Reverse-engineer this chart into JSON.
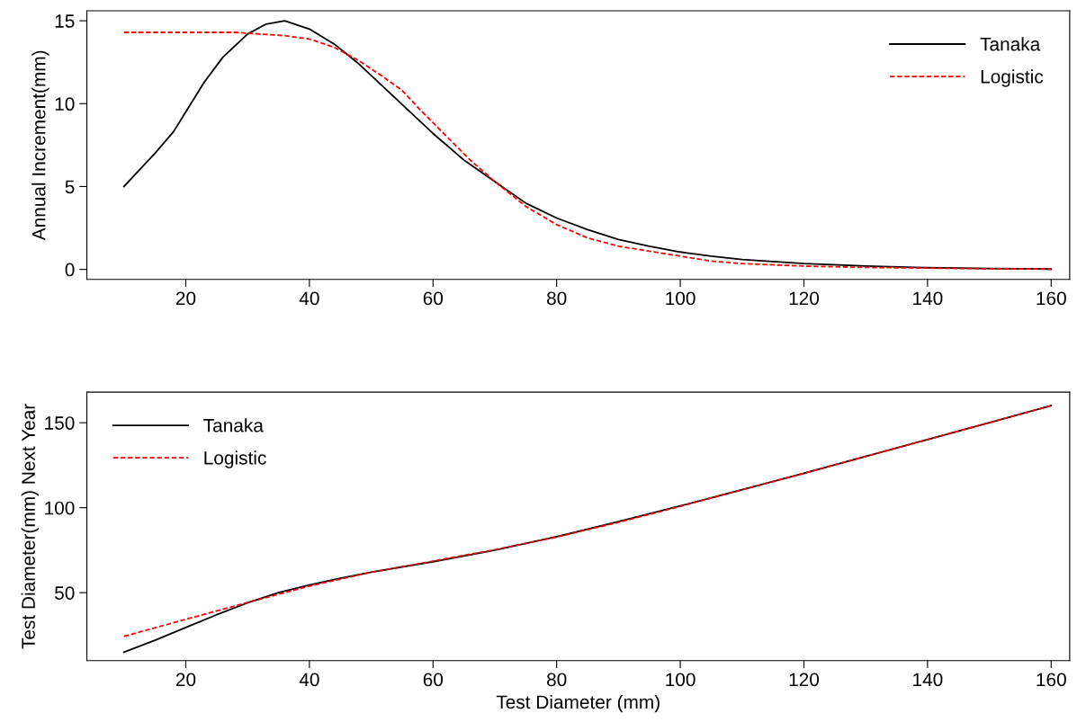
{
  "chart_data": [
    {
      "type": "line",
      "ylabel": "Annual Increment(mm)",
      "xlim": [
        4,
        163
      ],
      "ylim": [
        -0.6,
        15.6
      ],
      "xticks": [
        20,
        40,
        60,
        80,
        100,
        120,
        140,
        160
      ],
      "yticks": [
        0,
        5,
        10,
        15
      ],
      "grid": false,
      "legend": "top right",
      "series": [
        {
          "name": "Tanaka",
          "color": "#000000",
          "line_style": "solid",
          "x": [
            10,
            12,
            15,
            18,
            20,
            23,
            26,
            30,
            33,
            36,
            40,
            44,
            48,
            52,
            56,
            60,
            65,
            70,
            75,
            80,
            85,
            90,
            95,
            100,
            105,
            110,
            120,
            130,
            140,
            150,
            160
          ],
          "values": [
            5,
            5.8,
            7,
            8.3,
            9.5,
            11.3,
            12.8,
            14.2,
            14.8,
            15.0,
            14.5,
            13.6,
            12.4,
            11.0,
            9.6,
            8.2,
            6.6,
            5.3,
            4.0,
            3.1,
            2.4,
            1.8,
            1.4,
            1.05,
            0.8,
            0.6,
            0.35,
            0.2,
            0.1,
            0.05,
            0.02
          ]
        },
        {
          "name": "Logistic",
          "color": "#ff0000",
          "line_style": "dashed",
          "x": [
            10,
            20,
            28,
            32,
            36,
            40,
            44,
            48,
            52,
            55,
            58,
            62,
            66,
            70,
            75,
            80,
            85,
            90,
            95,
            100,
            105,
            110,
            120,
            130,
            140,
            150,
            160
          ],
          "values": [
            14.3,
            14.3,
            14.3,
            14.2,
            14.1,
            13.9,
            13.4,
            12.6,
            11.6,
            10.8,
            9.6,
            8.1,
            6.6,
            5.3,
            3.8,
            2.7,
            1.9,
            1.4,
            1.1,
            0.8,
            0.5,
            0.35,
            0.2,
            0.12,
            0.08,
            0.04,
            0.02
          ]
        }
      ]
    },
    {
      "type": "line",
      "xlabel": "Test Diameter (mm)",
      "ylabel": "Test Diameter(mm) Next Year",
      "xlim": [
        4,
        163
      ],
      "ylim": [
        10,
        168
      ],
      "xticks": [
        20,
        40,
        60,
        80,
        100,
        120,
        140,
        160
      ],
      "yticks": [
        50,
        100,
        150
      ],
      "grid": false,
      "legend": "top left",
      "series": [
        {
          "name": "Tanaka",
          "color": "#000000",
          "line_style": "solid",
          "x": [
            10,
            15,
            20,
            25,
            30,
            35,
            40,
            45,
            50,
            60,
            70,
            80,
            90,
            100,
            110,
            120,
            130,
            140,
            150,
            160
          ],
          "values": [
            15,
            22,
            29.5,
            37,
            44,
            50,
            54.5,
            58.5,
            62,
            68.2,
            75,
            83,
            91.8,
            101,
            110.6,
            120.3,
            130.2,
            140.1,
            150,
            160
          ]
        },
        {
          "name": "Logistic",
          "color": "#ff0000",
          "line_style": "dashed",
          "x": [
            10,
            20,
            30,
            40,
            50,
            60,
            70,
            80,
            90,
            100,
            120,
            140,
            160
          ],
          "values": [
            24.3,
            34.3,
            44.2,
            53.9,
            62,
            68.5,
            75.3,
            82.7,
            91.4,
            100.8,
            120.2,
            140.1,
            160
          ]
        }
      ]
    }
  ]
}
